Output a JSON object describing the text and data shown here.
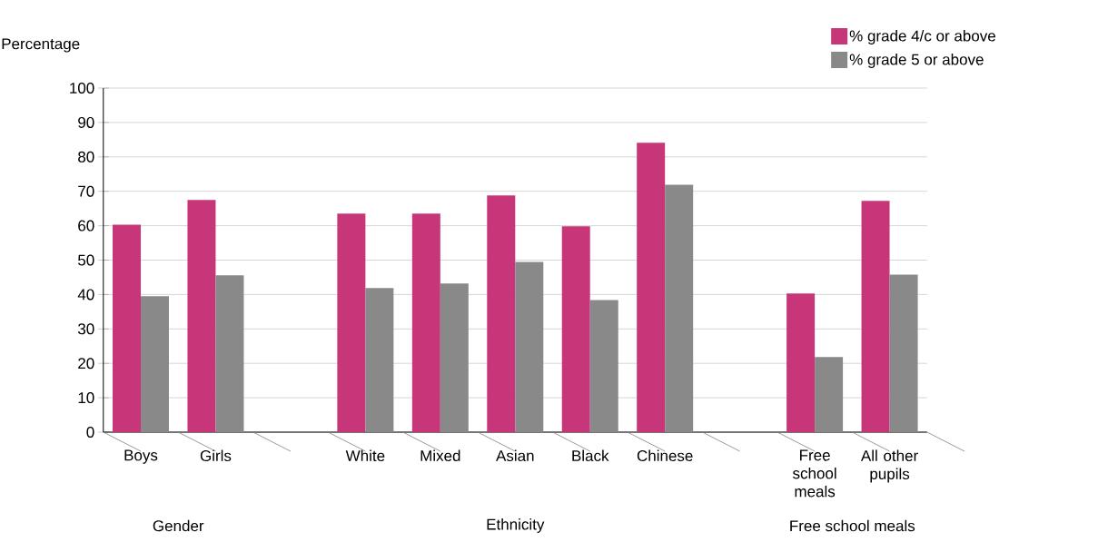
{
  "chart_data": {
    "type": "bar",
    "ylabel": "Percentage",
    "categories": [
      "Boys",
      "Girls",
      null,
      "White",
      "Mixed",
      "Asian",
      "Black",
      "Chinese",
      null,
      "Free school meals",
      "All other pupils"
    ],
    "series": [
      {
        "name": "% grade 4/c or above",
        "color": "#c8367a",
        "values": [
          60.3,
          67.5,
          null,
          63.5,
          63.5,
          68.8,
          59.8,
          84.1,
          null,
          40.3,
          67.2
        ]
      },
      {
        "name": "% grade 5 or above",
        "color": "#898989",
        "values": [
          39.5,
          45.6,
          null,
          41.9,
          43.2,
          49.5,
          38.4,
          71.9,
          null,
          21.8,
          45.8
        ]
      }
    ],
    "ylim": [
      0,
      100
    ],
    "yticks": [
      0,
      10,
      20,
      30,
      40,
      50,
      60,
      70,
      80,
      90,
      100
    ],
    "grid": "y",
    "legend": "top right",
    "annotations": [
      "Gender",
      "Ethnicity",
      "Free school meals"
    ]
  }
}
